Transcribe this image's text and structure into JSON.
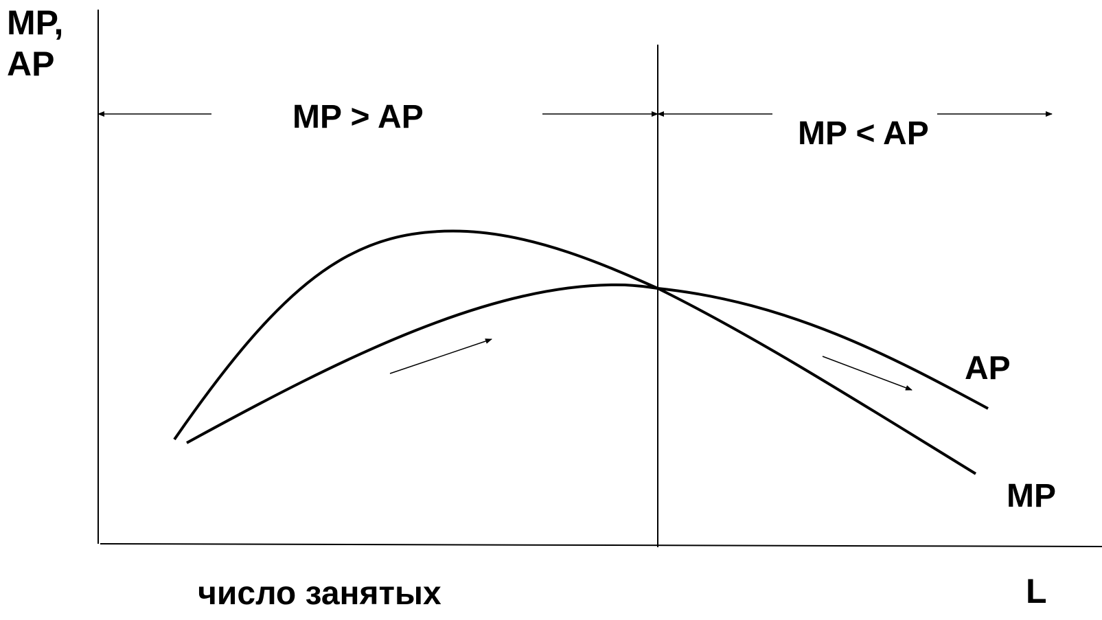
{
  "axes": {
    "y_label_line1": "MP,",
    "y_label_line2": "AP",
    "x_label": "L",
    "x_caption": "число занятых"
  },
  "regions": {
    "left": "MP > AP",
    "right": "MP < AP"
  },
  "curves": {
    "ap_label": "AP",
    "mp_label": "MP"
  },
  "colors": {
    "ink": "#000000",
    "background": "#ffffff"
  }
}
